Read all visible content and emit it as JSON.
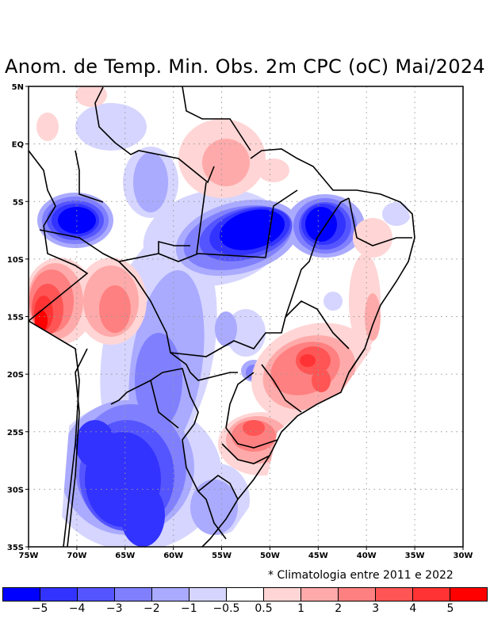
{
  "title": "Anom. de Temp. Min. Obs. 2m CPC (oC) Mai/2024",
  "note": "* Climatologia entre 2011 e 2022",
  "map": {
    "extent": {
      "lon": [
        -75,
        -30
      ],
      "lat": [
        -35,
        5
      ]
    },
    "lon_ticks": [
      "75W",
      "70W",
      "65W",
      "60W",
      "55W",
      "50W",
      "45W",
      "40W",
      "35W",
      "30W"
    ],
    "lat_ticks": [
      "5N",
      "EQ",
      "5S",
      "10S",
      "15S",
      "20S",
      "25S",
      "30S",
      "35S"
    ],
    "grid": "dotted",
    "variable": "Minimum temperature anomaly at 2m (oC)",
    "features": [
      {
        "name": "cold-core-western-amazon",
        "lon": -68.5,
        "lat": -6.5,
        "level": -5
      },
      {
        "name": "cold-core-para-east",
        "lon": -51,
        "lat": -8,
        "level": -5
      },
      {
        "name": "cold-core-maranhao",
        "lon": -45,
        "lat": -7,
        "level": -5
      },
      {
        "name": "cold-region-argentina",
        "lon": -65,
        "lat": -30,
        "level": -4
      },
      {
        "name": "warm-core-peru-bolivia",
        "lon": -73,
        "lat": -14,
        "level": 5
      },
      {
        "name": "warm-region-sao-paulo-minas",
        "lon": -46,
        "lat": -21,
        "level": 3
      },
      {
        "name": "warm-region-parana",
        "lon": -51,
        "lat": -25,
        "level": 2
      }
    ]
  },
  "colorbar": {
    "colors": [
      "#0000ff",
      "#3333ff",
      "#5555ff",
      "#8080ff",
      "#aaaaff",
      "#d5d5ff",
      "#ffffff",
      "#ffd5d5",
      "#ffaaaa",
      "#ff8080",
      "#ff5555",
      "#ff3333",
      "#ff0000"
    ],
    "labels": [
      "-5",
      "-4",
      "-3",
      "-2",
      "-1",
      "-0.5",
      "0.5",
      "1",
      "2",
      "3",
      "4",
      "5"
    ]
  }
}
